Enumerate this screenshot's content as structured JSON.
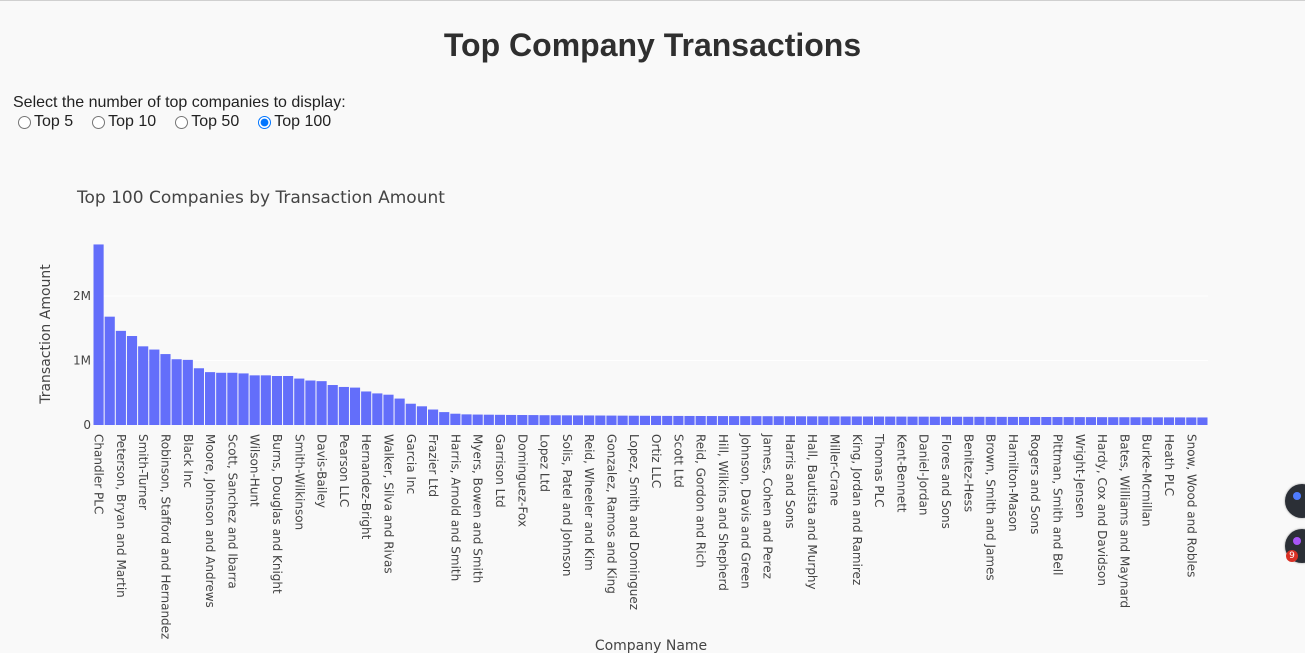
{
  "page": {
    "title": "Top Company Transactions"
  },
  "controls": {
    "prompt": "Select the number of top companies to display:",
    "options": [
      {
        "label": "Top 5",
        "checked": false
      },
      {
        "label": "Top 10",
        "checked": false
      },
      {
        "label": "Top 50",
        "checked": false
      },
      {
        "label": "Top 100",
        "checked": true
      }
    ]
  },
  "chart_data": {
    "type": "bar",
    "title": "Top 100 Companies by Transaction Amount",
    "xlabel": "Company Name",
    "ylabel": "Transaction Amount",
    "ylim": [
      0,
      2900000
    ],
    "yticks": [
      {
        "value": 0,
        "label": "0"
      },
      {
        "value": 1000000,
        "label": "1M"
      },
      {
        "value": 2000000,
        "label": "2M"
      }
    ],
    "grid": true,
    "bar_color": "#636efa",
    "categories": [
      "Chandler PLC",
      "",
      "Peterson, Bryan and Martin",
      "",
      "Smith-Turner",
      "",
      "Robinson, Stafford and Hernandez",
      "",
      "Black Inc",
      "",
      "Moore, Johnson and Andrews",
      "",
      "Scott, Sanchez and Ibarra",
      "",
      "Wilson-Hunt",
      "",
      "Burns, Douglas and Knight",
      "",
      "Smith-Wilkinson",
      "",
      "Davis-Bailey",
      "",
      "Pearson LLC",
      "",
      "Hernandez-Bright",
      "",
      "Walker, Silva and Rivas",
      "",
      "Garcia Inc",
      "",
      "Frazier Ltd",
      "",
      "Harris, Arnold and Smith",
      "",
      "Myers, Bowen and Smith",
      "",
      "Garrison Ltd",
      "",
      "Dominguez-Fox",
      "",
      "Lopez Ltd",
      "",
      "Solis, Patel and Johnson",
      "",
      "Reid, Wheeler and Kim",
      "",
      "Gonzalez, Ramos and King",
      "",
      "Lopez, Smith and Dominguez",
      "",
      "Ortiz LLC",
      "",
      "Scott Ltd",
      "",
      "Reid, Gordon and Rich",
      "",
      "Hill, Wilkins and Shepherd",
      "",
      "Johnson, Davis and Green",
      "",
      "James, Cohen and Perez",
      "",
      "Harris and Sons",
      "",
      "Hall, Bautista and Murphy",
      "",
      "Miller-Crane",
      "",
      "King, Jordan and Ramirez",
      "",
      "Thomas PLC",
      "",
      "Kent-Bennett",
      "",
      "Daniel-Jordan",
      "",
      "Flores and Sons",
      "",
      "Benitez-Hess",
      "",
      "Brown, Smith and James",
      "",
      "Hamilton-Mason",
      "",
      "Rogers and Sons",
      "",
      "Pittman, Smith and Bell",
      "",
      "Wright-Jensen",
      "",
      "Hardy, Cox and Davidson",
      "",
      "Bates, Williams and Maynard",
      "",
      "Burke-Mcmillan",
      "",
      "Heath PLC",
      "",
      "Snow, Wood and Robles",
      ""
    ],
    "values": [
      2800000,
      1680000,
      1460000,
      1380000,
      1220000,
      1170000,
      1100000,
      1020000,
      1010000,
      880000,
      820000,
      810000,
      810000,
      800000,
      770000,
      770000,
      760000,
      760000,
      720000,
      690000,
      680000,
      620000,
      590000,
      580000,
      520000,
      490000,
      470000,
      410000,
      330000,
      290000,
      240000,
      200000,
      175000,
      165000,
      162000,
      160000,
      158000,
      156000,
      155000,
      154000,
      152000,
      151000,
      150000,
      149000,
      148000,
      147000,
      146000,
      145000,
      144000,
      143000,
      142000,
      141000,
      140500,
      140000,
      139500,
      139000,
      138500,
      138000,
      137500,
      137000,
      136500,
      136000,
      135500,
      135000,
      134500,
      134000,
      133500,
      133000,
      132500,
      132000,
      131500,
      131000,
      130500,
      130000,
      129500,
      129000,
      128500,
      128000,
      127500,
      127000,
      126500,
      126000,
      125500,
      125000,
      124500,
      124000,
      123500,
      123000,
      122500,
      122000,
      121500,
      121000,
      120500,
      120000,
      119500,
      119000,
      118500,
      118000,
      117500,
      117000
    ]
  },
  "floating": {
    "badge_count": "9",
    "accent_1": "#4f7cff",
    "accent_2": "#a855f7"
  }
}
